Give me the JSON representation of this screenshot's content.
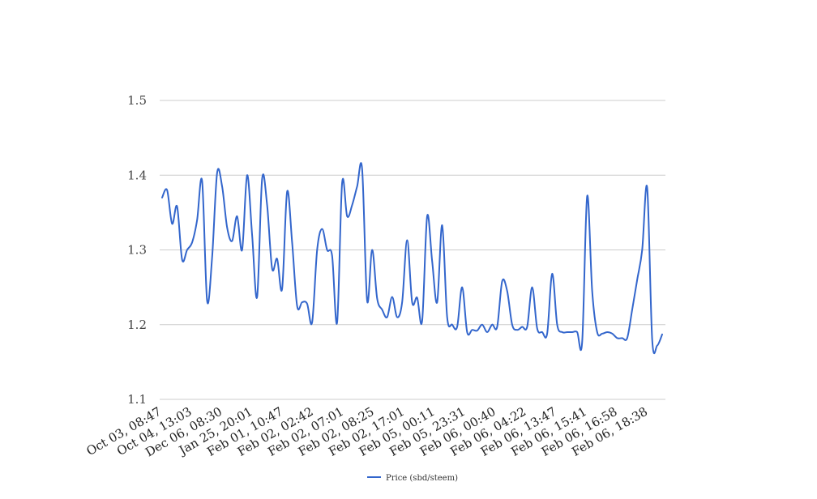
{
  "chart_data": {
    "type": "line",
    "title": "",
    "xlabel": "",
    "ylabel": "",
    "ylim": [
      1.1,
      1.5
    ],
    "yticks": [
      "1.1",
      "1.2",
      "1.3",
      "1.4",
      "1.5"
    ],
    "grid": true,
    "legend_position": "bottom",
    "series_color": "#3366cc",
    "x_tick_labels": [
      "Oct 03, 08:47",
      "Oct 04, 13:03",
      "Dec 06, 08:30",
      "Jan 25, 20:01",
      "Feb 01, 10:47",
      "Feb 02, 02:42",
      "Feb 02, 07:01",
      "Feb 02, 08:25",
      "Feb 02, 17:01",
      "Feb 05, 00:11",
      "Feb 05, 23:31",
      "Feb 06, 00:40",
      "Feb 06, 04:22",
      "Feb 06, 13:47",
      "Feb 06, 15:41",
      "Feb 06, 16:58",
      "Feb 06, 18:38"
    ],
    "series": [
      {
        "name": "Price (sbd/steem)",
        "values": [
          1.37,
          1.38,
          1.335,
          1.358,
          1.287,
          1.3,
          1.31,
          1.34,
          1.392,
          1.232,
          1.29,
          1.403,
          1.385,
          1.33,
          1.312,
          1.345,
          1.3,
          1.4,
          1.32,
          1.237,
          1.395,
          1.36,
          1.275,
          1.288,
          1.248,
          1.378,
          1.31,
          1.225,
          1.23,
          1.228,
          1.203,
          1.3,
          1.328,
          1.3,
          1.292,
          1.203,
          1.39,
          1.345,
          1.36,
          1.385,
          1.408,
          1.232,
          1.3,
          1.235,
          1.22,
          1.21,
          1.237,
          1.21,
          1.23,
          1.313,
          1.23,
          1.236,
          1.205,
          1.345,
          1.285,
          1.23,
          1.333,
          1.21,
          1.2,
          1.197,
          1.25,
          1.19,
          1.193,
          1.192,
          1.2,
          1.19,
          1.2,
          1.197,
          1.258,
          1.245,
          1.2,
          1.193,
          1.197,
          1.197,
          1.25,
          1.195,
          1.19,
          1.188,
          1.268,
          1.2,
          1.19,
          1.19,
          1.19,
          1.19,
          1.177,
          1.372,
          1.245,
          1.19,
          1.188,
          1.19,
          1.188,
          1.182,
          1.182,
          1.182,
          1.22,
          1.26,
          1.3,
          1.383,
          1.18,
          1.172,
          1.187
        ]
      }
    ]
  }
}
